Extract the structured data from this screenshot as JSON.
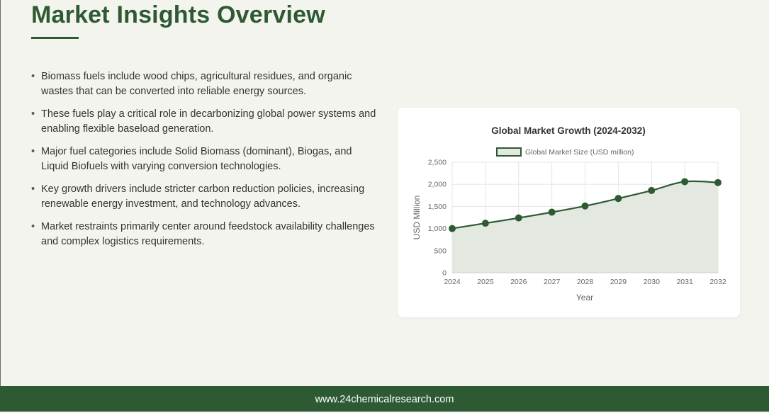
{
  "page": {
    "title": "Market Insights Overview",
    "bullets": [
      "Biomass fuels include wood chips, agricultural residues, and organic wastes that can be converted into reliable energy sources.",
      "These fuels play a critical role in decarbonizing global power systems and enabling flexible baseload generation.",
      "Major fuel categories include Solid Biomass (dominant), Biogas, and Liquid Biofuels with varying conversion technologies.",
      "Key growth drivers include stricter carbon reduction policies, increasing renewable energy investment, and technology advances.",
      "Market restraints primarily center around feedstock availability challenges and complex logistics requirements."
    ],
    "bullet_marker": "•",
    "footer": "www.24chemicalresearch.com"
  },
  "colors": {
    "accent": "#2e5a33",
    "area_fill": "#e3e8e1",
    "grid": "#e6e6e6",
    "background": "#f4f4ef"
  },
  "chart_data": {
    "type": "line",
    "title": "Global Market Growth (2024-2032)",
    "xlabel": "Year",
    "ylabel": "USD Million",
    "categories": [
      "2024",
      "2025",
      "2026",
      "2027",
      "2028",
      "2029",
      "2030",
      "2031",
      "2032"
    ],
    "series": [
      {
        "name": "Global Market Size (USD million)",
        "values": [
          1000,
          1120,
          1240,
          1370,
          1510,
          1680,
          1860,
          2060,
          2040
        ]
      }
    ],
    "ylim": [
      0,
      2500
    ],
    "yticks": [
      0,
      500,
      1000,
      1500,
      2000,
      2500
    ],
    "ytick_labels": [
      "0",
      "500",
      "1,000",
      "1,500",
      "2,000",
      "2,500"
    ],
    "fill": "area",
    "grid": true,
    "legend": "top"
  }
}
